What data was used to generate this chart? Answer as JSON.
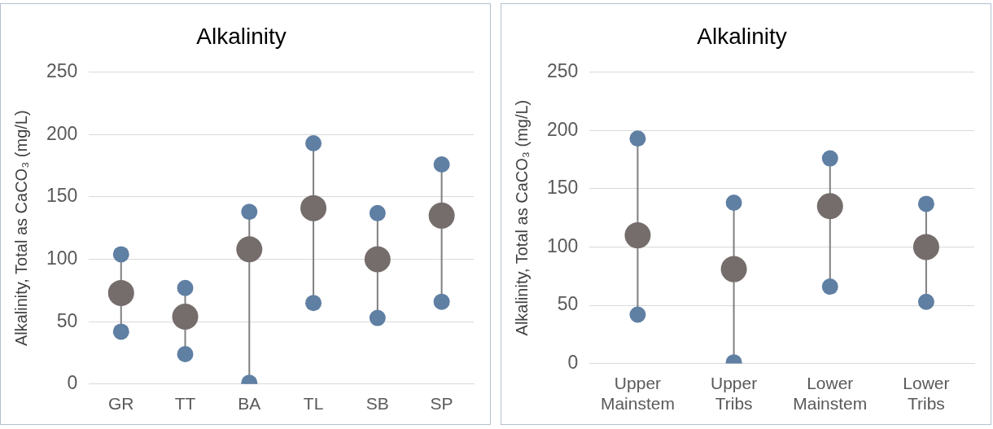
{
  "chart_data": [
    {
      "type": "scatter",
      "title": "Alkalinity",
      "ylabel": "Alkalinity, Total as CaCO₃ (mg/L)",
      "categories": [
        "GR",
        "TT",
        "BA",
        "TL",
        "SB",
        "SP"
      ],
      "ylim": [
        0,
        250
      ],
      "yticks": [
        0,
        50,
        100,
        150,
        200,
        250
      ],
      "grid": "y",
      "marker": "circle",
      "series": [
        {
          "color": "#5f7fa3",
          "values": [
            104,
            77,
            138,
            193,
            137,
            176
          ]
        },
        {
          "color": "#5f7fa3",
          "values": [
            42,
            24,
            1,
            65,
            53,
            66
          ]
        },
        {
          "color": "#756d6b",
          "values": [
            73,
            54,
            108,
            141,
            100,
            135
          ]
        }
      ]
    },
    {
      "type": "scatter",
      "title": "Alkalinity",
      "ylabel": "Alkalinity, Total as CaCO₃ (mg/L)",
      "categories": [
        "Upper Mainstem",
        "Upper Tribs",
        "Lower Mainstem",
        "Lower Tribs"
      ],
      "ylim": [
        0,
        250
      ],
      "yticks": [
        0,
        50,
        100,
        150,
        200,
        250
      ],
      "grid": "y",
      "marker": "circle",
      "series": [
        {
          "color": "#5f7fa3",
          "values": [
            193,
            138,
            176,
            137
          ]
        },
        {
          "color": "#5f7fa3",
          "values": [
            42,
            1,
            66,
            53
          ]
        },
        {
          "color": "#756d6b",
          "values": [
            110,
            81,
            135,
            100
          ]
        }
      ]
    }
  ]
}
